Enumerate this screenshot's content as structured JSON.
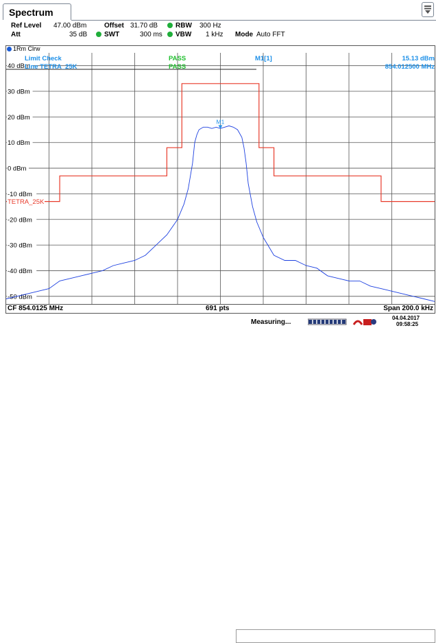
{
  "tab": {
    "label": "Spectrum"
  },
  "settings": {
    "ref_level_label": "Ref Level",
    "ref_level_value": "47.00 dBm",
    "offset_label": "Offset",
    "offset_value": "31.70 dB",
    "rbw_label": "RBW",
    "rbw_value": "300 Hz",
    "att_label": "Att",
    "att_value": "35 dB",
    "swt_label": "SWT",
    "swt_value": "300 ms",
    "vbw_label": "VBW",
    "vbw_value": "1 kHz",
    "mode_label": "Mode",
    "mode_value": "Auto FFT"
  },
  "trace_header": "1Rm Clrw",
  "limit_check": {
    "title": "Limit Check",
    "title_result": "PASS",
    "line_label": "Line TETRA_25K",
    "line_result": "PASS"
  },
  "marker": {
    "name": "M1[1]",
    "level": "15.13 dBm",
    "freq": "854.012500 MHz",
    "label": "M1"
  },
  "limit_line_name": "TETRA_25K",
  "y_ticks": [
    "40 dBm",
    "30 dBm",
    "20 dBm",
    "10 dBm",
    "0 dBm",
    "-10 dBm",
    "-20 dBm",
    "-30 dBm",
    "-40 dBm",
    "-50 dBm"
  ],
  "footer": {
    "cf": "CF 854.0125 MHz",
    "pts": "691 pts",
    "span": "Span 200.0 kHz"
  },
  "status": {
    "text": "Measuring...",
    "date": "04.04.2017",
    "time": "09:58:25"
  },
  "colors": {
    "trace": "#1b3fe0",
    "limit": "#e83a2a",
    "label_blue": "#1e90e8",
    "pass_green": "#22c030",
    "grid": "#555555"
  },
  "chart_data": {
    "type": "line",
    "x_range_khz": [
      -100,
      100
    ],
    "y_range_dbm": [
      -53,
      45
    ],
    "y_ticks": [
      40,
      30,
      20,
      10,
      0,
      -10,
      -20,
      -30,
      -40,
      -50
    ],
    "limit_line": {
      "name": "TETRA_25K",
      "x_khz": [
        -100,
        -75,
        -75,
        -25,
        -25,
        -18,
        -18,
        18,
        18,
        25,
        25,
        75,
        75,
        100
      ],
      "y_dbm": [
        -13,
        -13,
        -3,
        -3,
        8,
        8,
        33,
        33,
        8,
        8,
        -3,
        -3,
        -13,
        -13
      ]
    },
    "trace": {
      "name": "1Rm Clrw",
      "x_khz": [
        -100,
        -95,
        -90,
        -85,
        -80,
        -75,
        -70,
        -65,
        -60,
        -55,
        -50,
        -45,
        -40,
        -35,
        -30,
        -25,
        -20,
        -17,
        -15,
        -13,
        -12,
        -11,
        -10,
        -8,
        -6,
        -4,
        -2,
        0,
        2,
        4,
        6,
        8,
        10,
        11,
        12,
        13,
        15,
        17,
        20,
        25,
        30,
        35,
        40,
        45,
        50,
        55,
        60,
        65,
        70,
        75,
        80,
        85,
        90,
        95,
        100
      ],
      "y_dbm": [
        -51,
        -50,
        -49,
        -48,
        -47,
        -44,
        -43,
        -42,
        -41,
        -40,
        -38,
        -37,
        -36,
        -34,
        -30,
        -26,
        -20,
        -14,
        -8,
        2,
        10,
        13,
        15,
        16,
        16,
        15.5,
        16,
        15.5,
        16,
        16.5,
        16,
        15,
        12,
        8,
        2,
        -6,
        -15,
        -21,
        -27,
        -34,
        -36,
        -36,
        -38,
        -39,
        -42,
        -43,
        -44,
        -44,
        -46,
        -47,
        -48,
        -49,
        -50,
        -51,
        -52
      ]
    },
    "markers": [
      {
        "name": "M1",
        "x_khz": 0,
        "y_dbm": 15.13
      }
    ],
    "xlabel": "",
    "ylabel": "",
    "grid": true
  }
}
